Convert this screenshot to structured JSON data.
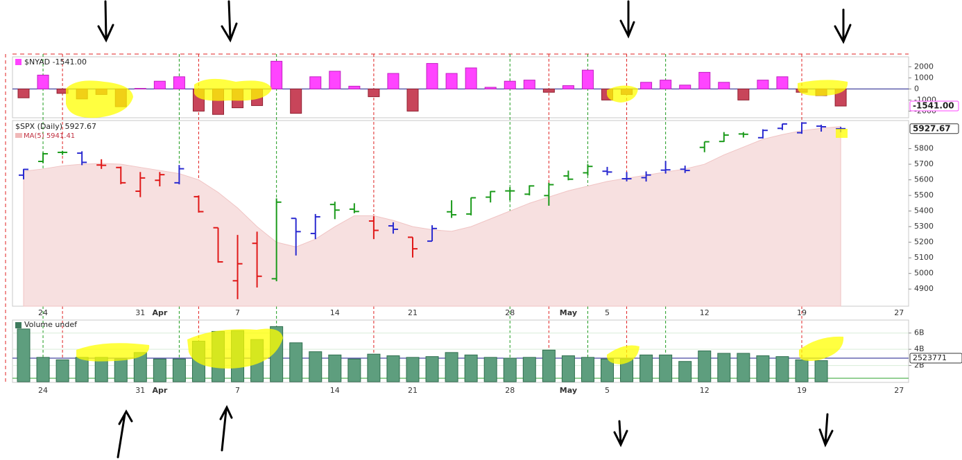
{
  "chart_data": [
    {
      "type": "bar",
      "legend": "$NYAD -1541.00",
      "values": [
        -800,
        1250,
        -400,
        -900,
        -500,
        -1600,
        50,
        700,
        1100,
        -2000,
        -2300,
        -1700,
        -1500,
        2500,
        -2200,
        1100,
        1600,
        250,
        -700,
        1400,
        -2000,
        2300,
        1400,
        1900,
        150,
        700,
        800,
        -300,
        300,
        1700,
        -1000,
        -500,
        600,
        800,
        350,
        1500,
        600,
        -1000,
        800,
        1100,
        -300,
        -600,
        -1541
      ],
      "value_labels": {
        "42": "-1541.00"
      },
      "pos_color": "#ff44ff",
      "neg_color": "#c8455a",
      "ylim": [
        -2600,
        2900
      ],
      "yticks": [
        2000,
        1000,
        0,
        -1000,
        -2000
      ]
    },
    {
      "type": "ohlc",
      "legend": "$SPX (Daily) 5927.67",
      "categories": [
        null,
        "24",
        null,
        null,
        null,
        null,
        "31",
        "Apr",
        null,
        null,
        null,
        "7",
        null,
        null,
        null,
        null,
        "14",
        null,
        null,
        null,
        "21",
        null,
        null,
        null,
        null,
        "28",
        null,
        null,
        "May",
        null,
        "5",
        null,
        null,
        null,
        null,
        "12",
        null,
        null,
        null,
        null,
        "19",
        null,
        null,
        null,
        null,
        "27"
      ],
      "open": [
        5630,
        5718,
        5776,
        5771,
        5695,
        5679,
        5527,
        5597,
        5581,
        5492,
        5293,
        4953,
        5193,
        4966,
        5353,
        5256,
        5442,
        5412,
        5336,
        5305,
        5232,
        5207,
        5395,
        5381,
        5489,
        5529,
        5508,
        5499,
        5625,
        5645,
        5655,
        5607,
        5614,
        5662,
        5668,
        5808,
        5846,
        5894,
        5870,
        5930,
        5902,
        5944,
        5927,
        null,
        null,
        null
      ],
      "high": [
        5670,
        5775,
        5786,
        5783,
        5732,
        5685,
        5650,
        5650,
        5695,
        5500,
        5293,
        5247,
        5268,
        5481,
        5353,
        5381,
        5460,
        5450,
        5367,
        5328,
        5232,
        5309,
        5469,
        5486,
        5528,
        5553,
        5565,
        5581,
        5659,
        5700,
        5683,
        5650,
        5654,
        5721,
        5691,
        5844,
        5906,
        5906,
        5924,
        5959,
        5969,
        5953,
        5939,
        null,
        null,
        null
      ],
      "low": [
        5603,
        5708,
        5760,
        5694,
        5670,
        5572,
        5489,
        5558,
        5571,
        5390,
        5069,
        4835,
        4910,
        4950,
        5115,
        5220,
        5348,
        5386,
        5220,
        5255,
        5102,
        5207,
        5356,
        5372,
        5455,
        5468,
        5500,
        5434,
        5597,
        5629,
        5629,
        5590,
        5589,
        5640,
        5644,
        5777,
        5843,
        5871,
        5865,
        5919,
        5895,
        5909,
        5905,
        null,
        null,
        null
      ],
      "close": [
        5667,
        5767,
        5776,
        5712,
        5693,
        5581,
        5612,
        5633,
        5671,
        5396,
        5074,
        5062,
        4982,
        5457,
        5268,
        5363,
        5406,
        5397,
        5276,
        5283,
        5158,
        5288,
        5376,
        5485,
        5525,
        5529,
        5561,
        5569,
        5604,
        5686,
        5650,
        5607,
        5631,
        5664,
        5660,
        5844,
        5887,
        5892,
        5917,
        5958,
        5964,
        5940,
        5927.67,
        null,
        null,
        null
      ],
      "close_labels": {
        "42": "5927.67"
      },
      "colors": [
        "#2a2ad0",
        "#1a9a1a",
        "#1a9a1a",
        "#2a2ad0",
        "#e01818",
        "#e01818",
        "#e01818",
        "#e01818",
        "#2a2ad0",
        "#e01818",
        "#e01818",
        "#e01818",
        "#e01818",
        "#1a9a1a",
        "#2a2ad0",
        "#2a2ad0",
        "#1a9a1a",
        "#1a9a1a",
        "#e01818",
        "#2a2ad0",
        "#e01818",
        "#2a2ad0",
        "#1a9a1a",
        "#1a9a1a",
        "#1a9a1a",
        "#1a9a1a",
        "#1a9a1a",
        "#1a9a1a",
        "#1a9a1a",
        "#1a9a1a",
        "#2a2ad0",
        "#2a2ad0",
        "#2a2ad0",
        "#2a2ad0",
        "#2a2ad0",
        "#1a9a1a",
        "#1a9a1a",
        "#1a9a1a",
        "#2a2ad0",
        "#2a2ad0",
        "#2a2ad0",
        "#2a2ad0",
        "#2a2ad0",
        null,
        null,
        null
      ],
      "ma": {
        "name": "MA(5) 5941.41",
        "color": "#f7e0e0",
        "values": [
          5655,
          5670,
          5690,
          5700,
          5705,
          5700,
          5680,
          5660,
          5640,
          5600,
          5520,
          5420,
          5300,
          5200,
          5170,
          5220,
          5300,
          5370,
          5370,
          5340,
          5300,
          5280,
          5270,
          5300,
          5350,
          5400,
          5450,
          5490,
          5530,
          5560,
          5590,
          5610,
          5630,
          5650,
          5670,
          5700,
          5760,
          5810,
          5860,
          5890,
          5915,
          5930,
          5941.41,
          null,
          null,
          null
        ]
      },
      "ylim": [
        4790,
        5980
      ],
      "yticks": [
        4900,
        5000,
        5100,
        5200,
        5300,
        5400,
        5500,
        5600,
        5700,
        5800
      ]
    },
    {
      "type": "volume",
      "legend": "Volume undef",
      "categories": [
        null,
        "24",
        null,
        null,
        null,
        null,
        "31",
        "Apr",
        null,
        null,
        null,
        "7",
        null,
        null,
        null,
        null,
        "14",
        null,
        null,
        null,
        "21",
        null,
        null,
        null,
        null,
        "28",
        null,
        null,
        "May",
        null,
        "5",
        null,
        null,
        null,
        null,
        "12",
        null,
        null,
        null,
        null,
        "19",
        null,
        null,
        null,
        null,
        "27"
      ],
      "values": [
        6.5,
        3.0,
        2.7,
        3.0,
        3.0,
        2.8,
        3.6,
        2.8,
        2.8,
        5.0,
        6.2,
        6.3,
        5.2,
        6.8,
        4.8,
        3.7,
        3.3,
        2.8,
        3.4,
        3.2,
        3.0,
        3.1,
        3.6,
        3.3,
        3.0,
        2.9,
        3.0,
        3.9,
        3.2,
        3.0,
        2.8,
        2.8,
        3.3,
        3.3,
        2.5,
        3.8,
        3.5,
        3.5,
        3.2,
        3.1,
        2.7,
        2.6,
        null,
        null,
        null,
        null
      ],
      "color": "#5e9e7e",
      "avg_label": "2523771",
      "ylim": [
        0,
        7.6
      ],
      "yticks": [
        {
          "value": 2,
          "label": "2B"
        },
        {
          "value": 4,
          "label": "4B"
        },
        {
          "value": 6,
          "label": "6B"
        }
      ]
    }
  ]
}
